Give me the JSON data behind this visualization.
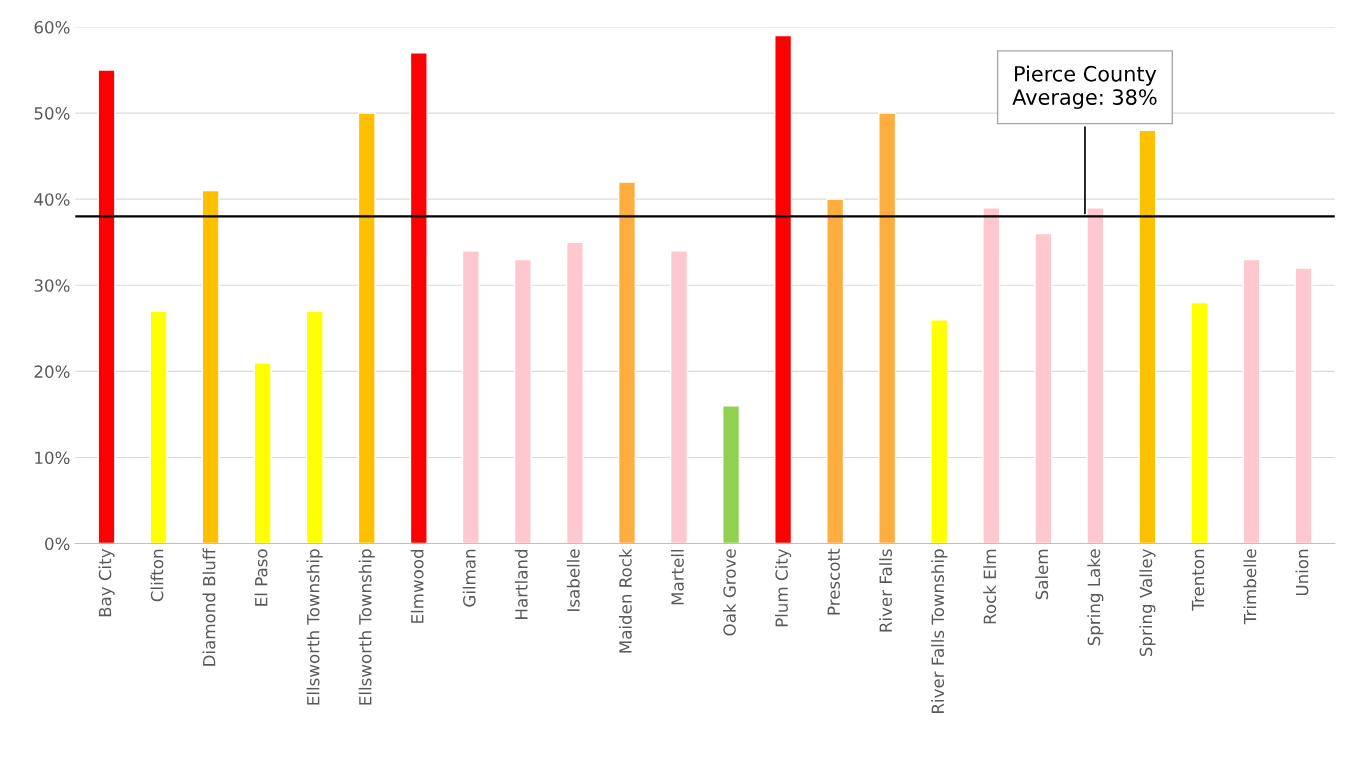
{
  "chart_data": {
    "type": "bar",
    "categories": [
      "Bay City",
      "Clifton",
      "Diamond Bluff",
      "El Paso",
      "Ellsworth Township",
      "Ellsworth Township",
      "Elmwood",
      "Gilman",
      "Hartland",
      "Isabelle",
      "Maiden Rock",
      "Martell",
      "Oak Grove",
      "Plum City",
      "Prescott",
      "River Falls",
      "River Falls Township",
      "Rock Elm",
      "Salem",
      "Spring Lake",
      "Spring Valley",
      "Trenton",
      "Trimbelle",
      "Union"
    ],
    "values": [
      55,
      27,
      41,
      21,
      27,
      50,
      57,
      34,
      33,
      35,
      42,
      34,
      16,
      59,
      40,
      50,
      26,
      39,
      36,
      39,
      48,
      28,
      33,
      32
    ],
    "colors": [
      "#ff0000",
      "#ffff00",
      "#ffc000",
      "#ffff00",
      "#ffff00",
      "#ffc000",
      "#ff0000",
      "#ffc7ce",
      "#ffc7ce",
      "#ffc7ce",
      "#ffad3f",
      "#ffc7ce",
      "#92d050",
      "#ff0000",
      "#ffad3f",
      "#ffad3f",
      "#ffff00",
      "#ffc7ce",
      "#ffc7ce",
      "#ffc7ce",
      "#ffc000",
      "#ffff00",
      "#ffc7ce",
      "#ffc7ce"
    ],
    "ylim": [
      0,
      60
    ],
    "yticks": [
      {
        "value": 0,
        "label": "0%"
      },
      {
        "value": 10,
        "label": "10%"
      },
      {
        "value": 20,
        "label": "20%"
      },
      {
        "value": 30,
        "label": "30%"
      },
      {
        "value": 40,
        "label": "40%"
      },
      {
        "value": 50,
        "label": "50%"
      },
      {
        "value": 60,
        "label": "60%"
      }
    ],
    "grid": "y",
    "legend": false,
    "ref_lines": [
      {
        "axis": "y",
        "value": 38,
        "label": "Pierce County\nAverage: 38%",
        "color": "#000000"
      }
    ]
  }
}
